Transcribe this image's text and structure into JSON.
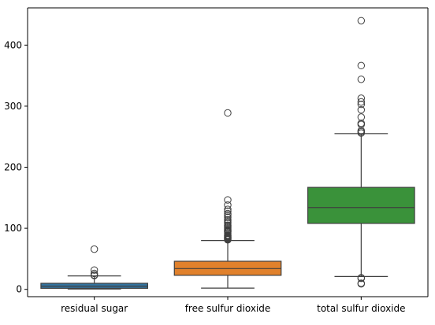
{
  "chart_data": {
    "type": "box",
    "title": "",
    "xlabel": "",
    "ylabel": "",
    "categories": [
      "residual sugar",
      "free sulfur dioxide",
      "total sulfur dioxide"
    ],
    "ylim": [
      -12,
      461
    ],
    "yticks": [
      0,
      100,
      200,
      300,
      400
    ],
    "ytick_labels": [
      "0",
      "100",
      "200",
      "300",
      "400"
    ],
    "grid": false,
    "legend": "none",
    "colors": [
      "#3274a1",
      "#e1812c",
      "#3a923a"
    ],
    "line_color": "#3f3f3f",
    "boxes": [
      {
        "name": "residual sugar",
        "q1": 1.7,
        "median": 5.2,
        "q3": 9.9,
        "whisker_low": 0.6,
        "whisker_high": 22.0,
        "outliers": [
          22.6,
          23.5,
          26.05,
          31.6,
          65.8
        ]
      },
      {
        "name": "free sulfur dioxide",
        "q1": 23,
        "median": 34,
        "q3": 46,
        "whisker_low": 2,
        "whisker_high": 80,
        "outliers": [
          81,
          82,
          83,
          84,
          85,
          86,
          87,
          88,
          89,
          92,
          94,
          95,
          96,
          97,
          98,
          100,
          102,
          104,
          105,
          108,
          110,
          112,
          114,
          118,
          122,
          124,
          128,
          131,
          138,
          146.5,
          289
        ]
      },
      {
        "name": "total sulfur dioxide",
        "q1": 108,
        "median": 134,
        "q3": 167,
        "whisker_low": 21,
        "whisker_high": 255,
        "outliers": [
          9,
          10,
          18,
          19,
          256,
          258,
          260,
          270,
          272,
          282,
          294,
          303,
          307,
          313,
          344,
          366.5,
          440
        ]
      }
    ]
  }
}
